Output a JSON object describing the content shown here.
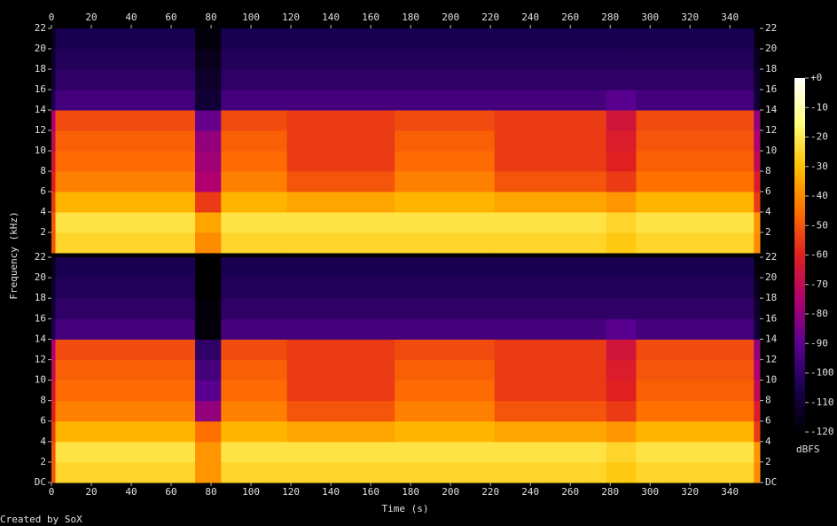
{
  "chart_data": {
    "type": "spectrogram",
    "x_label": "Time (s)",
    "y_label": "Frequency (kHz)",
    "xlim": [
      0,
      355
    ],
    "xticks": [
      0,
      20,
      40,
      60,
      80,
      100,
      120,
      140,
      160,
      180,
      200,
      220,
      240,
      260,
      280,
      300,
      320,
      340
    ],
    "time_edges": [
      0,
      2,
      72,
      85,
      118,
      172,
      222,
      278,
      293,
      352,
      355
    ],
    "freq_edges": [
      0,
      2,
      4,
      6,
      8,
      10,
      12,
      14,
      16,
      18,
      20,
      22
    ],
    "channels": [
      {
        "ylim": [
          0,
          22
        ],
        "yticks": [
          2,
          4,
          6,
          8,
          10,
          12,
          14,
          16,
          18,
          20,
          22
        ],
        "z": [
          [
            -50,
            -25,
            -40,
            -25,
            -25,
            -25,
            -25,
            -28,
            -25,
            -40
          ],
          [
            -50,
            -22,
            -35,
            -22,
            -22,
            -22,
            -22,
            -25,
            -22,
            -38
          ],
          [
            -55,
            -32,
            -55,
            -32,
            -35,
            -32,
            -35,
            -38,
            -32,
            -55
          ],
          [
            -60,
            -42,
            -75,
            -42,
            -50,
            -42,
            -50,
            -55,
            -45,
            -62
          ],
          [
            -65,
            -46,
            -78,
            -46,
            -55,
            -46,
            -55,
            -60,
            -48,
            -70
          ],
          [
            -70,
            -48,
            -80,
            -48,
            -55,
            -48,
            -55,
            -62,
            -50,
            -75
          ],
          [
            -75,
            -52,
            -88,
            -52,
            -55,
            -52,
            -55,
            -65,
            -52,
            -80
          ],
          [
            -105,
            -95,
            -110,
            -95,
            -95,
            -95,
            -95,
            -90,
            -95,
            -110
          ],
          [
            -110,
            -100,
            -112,
            -100,
            -100,
            -100,
            -100,
            -100,
            -100,
            -112
          ],
          [
            -112,
            -103,
            -115,
            -103,
            -103,
            -103,
            -103,
            -103,
            -103,
            -115
          ],
          [
            -115,
            -105,
            -118,
            -105,
            -105,
            -105,
            -105,
            -105,
            -105,
            -118
          ]
        ]
      },
      {
        "ylim": [
          0,
          22
        ],
        "yticks": [
          {
            "value": 0,
            "label": "DC"
          },
          2,
          4,
          6,
          8,
          10,
          12,
          14,
          16,
          18,
          20,
          22
        ],
        "z": [
          [
            -50,
            -25,
            -38,
            -25,
            -25,
            -25,
            -25,
            -28,
            -25,
            -40
          ],
          [
            -50,
            -22,
            -38,
            -22,
            -22,
            -22,
            -22,
            -25,
            -22,
            -38
          ],
          [
            -55,
            -32,
            -45,
            -32,
            -35,
            -32,
            -35,
            -38,
            -32,
            -55
          ],
          [
            -60,
            -42,
            -80,
            -42,
            -50,
            -42,
            -50,
            -55,
            -45,
            -62
          ],
          [
            -65,
            -46,
            -90,
            -46,
            -55,
            -46,
            -55,
            -60,
            -48,
            -70
          ],
          [
            -70,
            -48,
            -95,
            -48,
            -55,
            -48,
            -55,
            -62,
            -50,
            -75
          ],
          [
            -75,
            -52,
            -100,
            -52,
            -55,
            -52,
            -55,
            -65,
            -52,
            -80
          ],
          [
            -105,
            -95,
            -118,
            -95,
            -95,
            -95,
            -95,
            -90,
            -95,
            -110
          ],
          [
            -110,
            -100,
            -118,
            -100,
            -100,
            -100,
            -100,
            -100,
            -100,
            -112
          ],
          [
            -112,
            -103,
            -120,
            -103,
            -103,
            -103,
            -103,
            -103,
            -103,
            -115
          ],
          [
            -115,
            -105,
            -120,
            -105,
            -105,
            -105,
            -105,
            -105,
            -105,
            -118
          ]
        ]
      }
    ],
    "colorbar": {
      "label": "dBFS",
      "lim": [
        -120,
        0
      ],
      "ticks": [
        {
          "value": 0,
          "label": "+0"
        },
        -10,
        -20,
        -30,
        -40,
        -50,
        -60,
        -70,
        -80,
        -90,
        -100,
        -110,
        -120
      ],
      "colormap": [
        "#000000",
        "#1a0050",
        "#5a0090",
        "#b00070",
        "#e02020",
        "#ff7000",
        "#ffc000",
        "#ffff80",
        "#ffffff"
      ]
    }
  },
  "footer": "Created by SoX"
}
